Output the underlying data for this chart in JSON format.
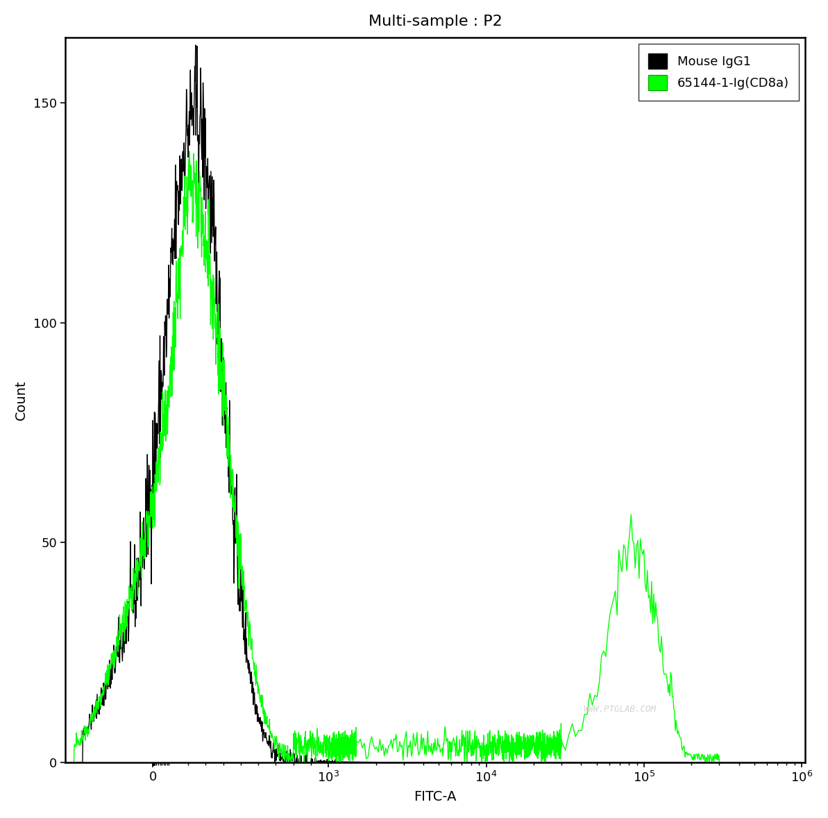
{
  "title": "Multi-sample : P2",
  "xlabel": "FITC-A",
  "ylabel": "Count",
  "ylim": [
    0,
    165
  ],
  "yticks": [
    0,
    50,
    100,
    150
  ],
  "background_color": "#ffffff",
  "black_color": "#000000",
  "green_color": "#00ff00",
  "legend_labels": [
    "Mouse IgG1",
    "65144-1-Ig(CD8a)"
  ],
  "watermark": "WWW.PTGLAB.COM",
  "title_fontsize": 16,
  "axis_fontsize": 14,
  "tick_fontsize": 13,
  "legend_fontsize": 13,
  "linthresh": 1000,
  "linscale": 1.0
}
